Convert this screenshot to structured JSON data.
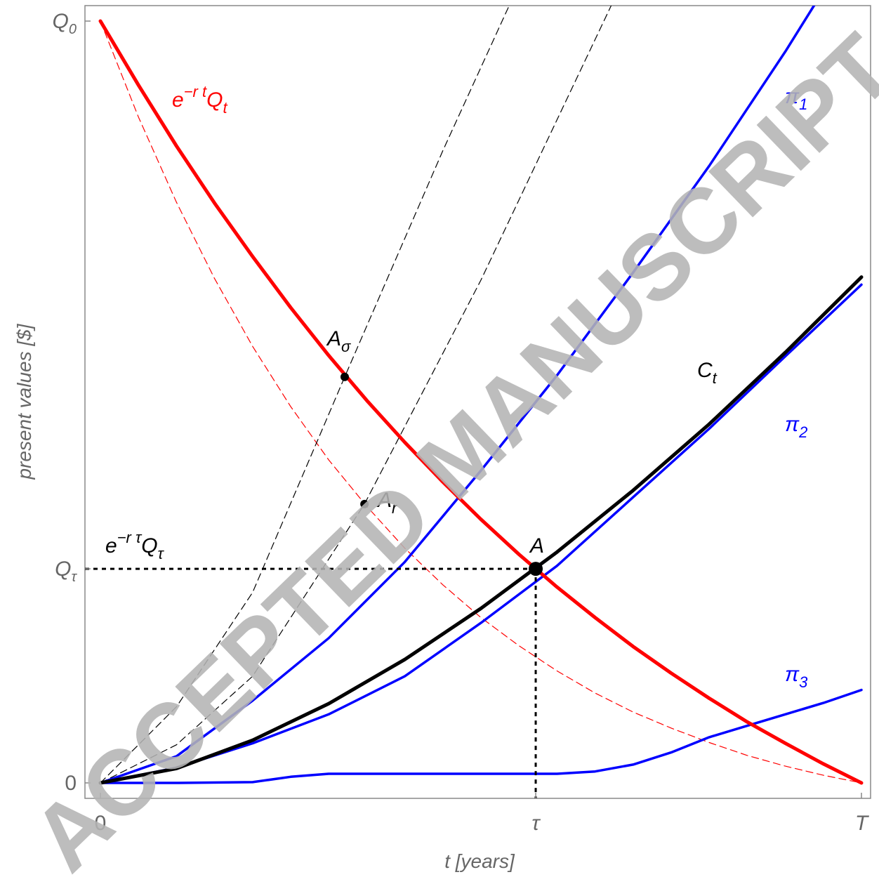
{
  "chart_data": {
    "type": "line",
    "xlabel": "t  [years]",
    "ylabel": "present values  [$]",
    "watermark": "ACCEPTED MANUSCRIPT",
    "xlim": [
      -0.0203,
      1.012
    ],
    "ylim": [
      -0.0203,
      1.0203
    ],
    "xticks": [
      0,
      {
        "value": 0.572,
        "label": "τ"
      },
      {
        "value": 1,
        "label": "T"
      }
    ],
    "yticks": [
      0,
      {
        "value": 0.281,
        "label": "Q",
        "sub": "τ"
      },
      {
        "value": 1,
        "label": "Q",
        "sub": "0"
      }
    ],
    "series": [
      {
        "color": "#ff0000",
        "width": 1.2,
        "dash": true,
        "x": [
          0,
          0.05,
          0.1,
          0.15,
          0.2,
          0.25,
          0.3,
          0.35,
          0.4,
          0.45,
          0.5,
          0.55,
          0.6,
          0.65,
          0.7,
          0.75,
          0.8,
          0.85,
          0.9,
          0.95,
          1
        ],
        "values": [
          1,
          0.874,
          0.762,
          0.662,
          0.573,
          0.494,
          0.424,
          0.363,
          0.308,
          0.26,
          0.217,
          0.18,
          0.147,
          0.118,
          0.093,
          0.072,
          0.053,
          0.036,
          0.022,
          0.01,
          0
        ]
      },
      {
        "color": "#000000",
        "width": 1.2,
        "dash": true,
        "x": [
          0,
          0.1,
          0.2,
          0.321,
          0.45,
          0.537
        ],
        "values": [
          0,
          0.1,
          0.25,
          0.533,
          0.83,
          1.02
        ]
      },
      {
        "color": "#000000",
        "width": 1.2,
        "dash": true,
        "x": [
          0,
          0.1,
          0.2,
          0.347,
          0.5,
          0.671
        ],
        "values": [
          0,
          0.05,
          0.14,
          0.366,
          0.66,
          1.02
        ]
      },
      {
        "color": "#0000ff",
        "width": 3.5,
        "x": [
          0,
          0.1,
          0.2,
          0.3,
          0.4,
          0.5,
          0.6,
          0.7,
          0.8,
          0.9,
          0.95
        ],
        "values": [
          0,
          0.035,
          0.108,
          0.19,
          0.29,
          0.41,
          0.535,
          0.67,
          0.81,
          0.96,
          1.04
        ]
      },
      {
        "color": "#0000ff",
        "width": 3.5,
        "x": [
          0,
          0.1,
          0.2,
          0.3,
          0.4,
          0.5,
          0.6,
          0.7,
          0.8,
          0.9,
          1
        ],
        "values": [
          0,
          0.02,
          0.052,
          0.09,
          0.14,
          0.21,
          0.285,
          0.375,
          0.465,
          0.56,
          0.654
        ]
      },
      {
        "color": "#0000ff",
        "width": 3.5,
        "x": [
          0,
          0.1,
          0.2,
          0.25,
          0.3,
          0.6,
          0.65,
          0.7,
          0.75,
          0.8,
          0.85,
          0.9,
          0.95,
          1
        ],
        "values": [
          0,
          0,
          0.001,
          0.008,
          0.012,
          0.012,
          0.015,
          0.024,
          0.04,
          0.06,
          0.075,
          0.09,
          0.105,
          0.122
        ]
      },
      {
        "color": "#000000",
        "width": 5,
        "x": [
          0,
          0.1,
          0.2,
          0.3,
          0.4,
          0.5,
          0.6,
          0.7,
          0.8,
          0.9,
          1
        ],
        "values": [
          0,
          0.019,
          0.056,
          0.104,
          0.162,
          0.229,
          0.303,
          0.384,
          0.471,
          0.565,
          0.664
        ]
      },
      {
        "color": "#ff0000",
        "width": 5,
        "x": [
          0,
          0.05,
          0.1,
          0.15,
          0.2,
          0.25,
          0.3,
          0.35,
          0.4,
          0.45,
          0.5,
          0.55,
          0.6,
          0.65,
          0.7,
          0.75,
          0.8,
          0.85,
          0.9,
          0.95,
          1
        ],
        "values": [
          1,
          0.916,
          0.836,
          0.761,
          0.691,
          0.624,
          0.561,
          0.502,
          0.447,
          0.395,
          0.346,
          0.3,
          0.257,
          0.217,
          0.179,
          0.144,
          0.111,
          0.08,
          0.052,
          0.025,
          0
        ]
      }
    ],
    "points": [
      {
        "x": 0.321,
        "y": 0.533
      },
      {
        "x": 0.347,
        "y": 0.366
      },
      {
        "x": 0.572,
        "y": 0.281,
        "large": true,
        "guides": true
      }
    ],
    "annotations": [
      {
        "color": "#ff0000",
        "parts": [
          {
            "t": "e"
          },
          {
            "t": "−r t",
            "pos": "sup"
          },
          {
            "t": "Q"
          },
          {
            "t": "t",
            "pos": "sub"
          }
        ]
      },
      {
        "color": "#0000ff",
        "parts": [
          {
            "t": "π"
          },
          {
            "t": "1",
            "pos": "sub"
          }
        ]
      },
      {
        "color": "#0000ff",
        "parts": [
          {
            "t": "π"
          },
          {
            "t": "2",
            "pos": "sub"
          }
        ]
      },
      {
        "color": "#0000ff",
        "parts": [
          {
            "t": "π"
          },
          {
            "t": "3",
            "pos": "sub"
          }
        ]
      },
      {
        "color": "#000000",
        "parts": [
          {
            "t": "C"
          },
          {
            "t": "t",
            "pos": "sub"
          }
        ]
      },
      {
        "color": "#000000",
        "parts": [
          {
            "t": "A"
          },
          {
            "t": "σ",
            "pos": "sub"
          }
        ]
      },
      {
        "color": "#000000",
        "parts": [
          {
            "t": "A"
          },
          {
            "t": "r",
            "pos": "sub"
          }
        ]
      },
      {
        "color": "#000000",
        "parts": [
          {
            "t": "A"
          }
        ]
      },
      {
        "color": "#000000",
        "parts": [
          {
            "t": "e"
          },
          {
            "t": "−r τ",
            "pos": "sup"
          },
          {
            "t": "Q"
          },
          {
            "t": "τ",
            "pos": "sub"
          }
        ]
      }
    ]
  }
}
